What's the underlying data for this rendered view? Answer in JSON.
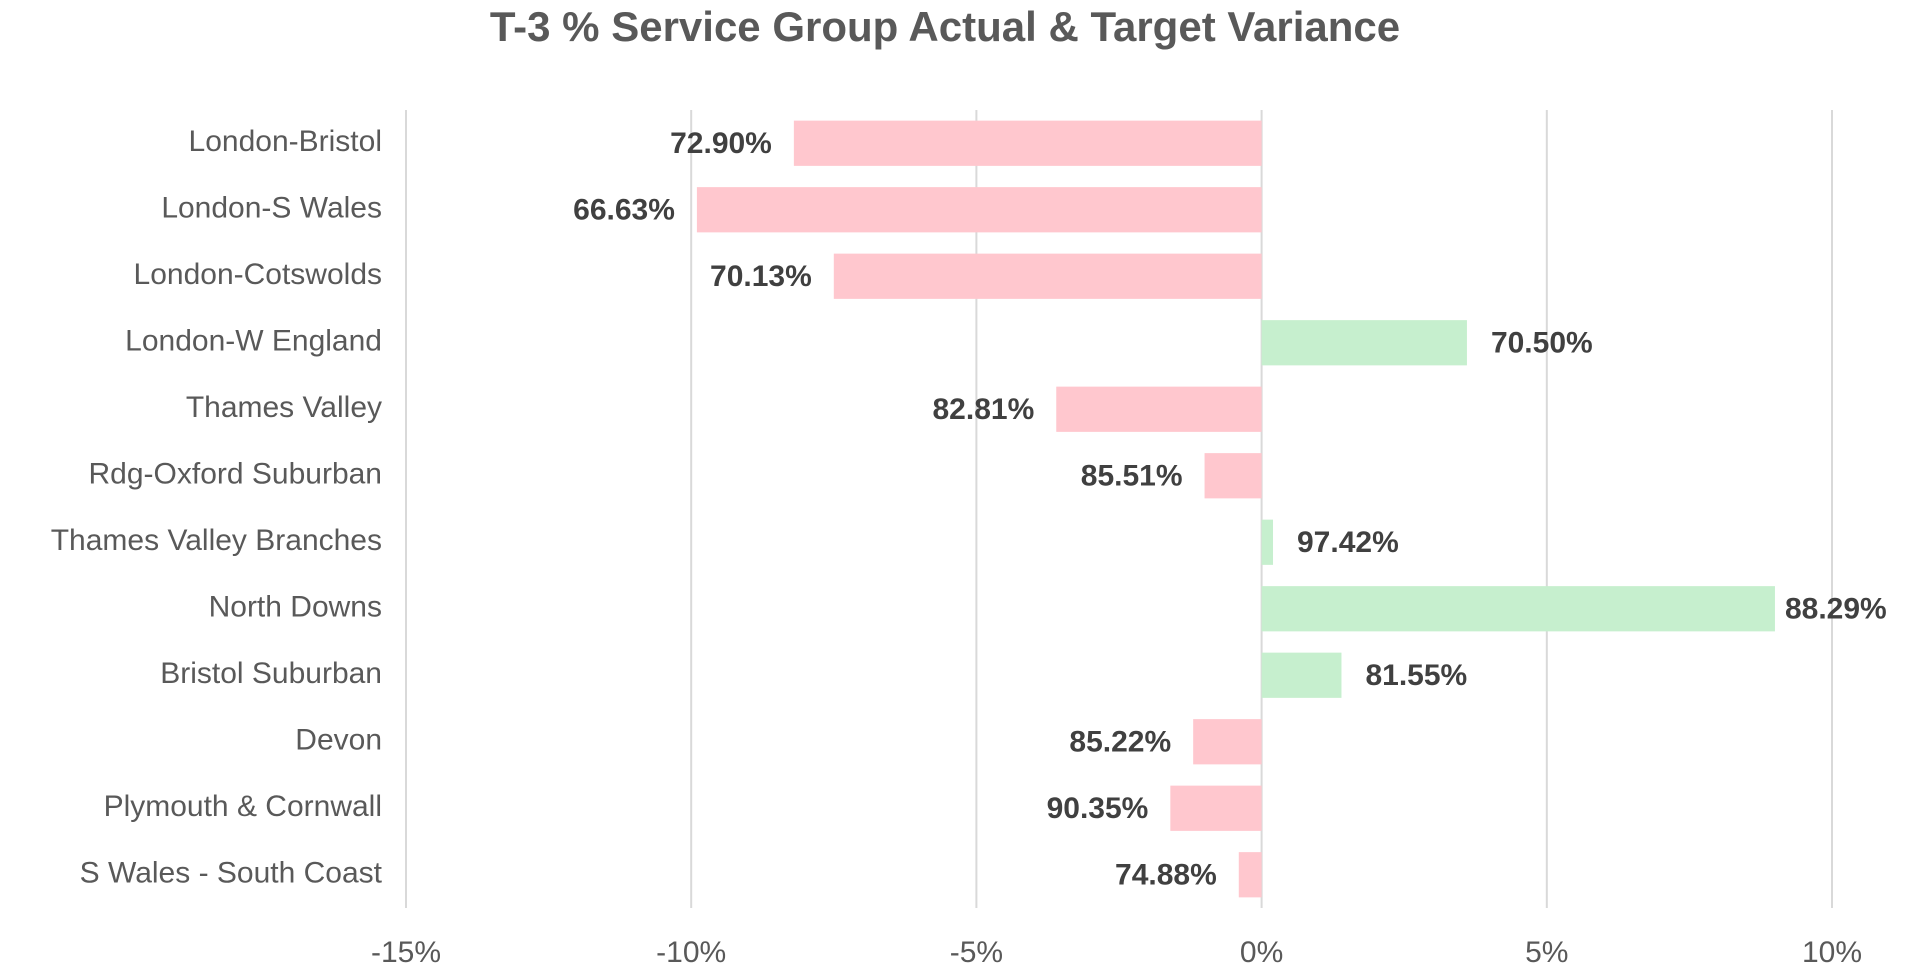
{
  "chart_data": {
    "type": "barh",
    "title": "T-3 % Service Group Actual & Target Variance",
    "categories": [
      "London-Bristol",
      "London-S Wales",
      "London-Cotswolds",
      "London-W England",
      "Thames Valley",
      "Rdg-Oxford Suburban",
      "Thames Valley Branches",
      "North Downs",
      "Bristol Suburban",
      "Devon",
      "Plymouth & Cornwall",
      "S Wales - South Coast"
    ],
    "values": [
      -8.2,
      -9.9,
      -7.5,
      3.6,
      -3.6,
      -1.0,
      0.2,
      9.0,
      1.4,
      -1.2,
      -1.6,
      -0.4
    ],
    "bar_labels": [
      "72.90%",
      "66.63%",
      "70.13%",
      "70.50%",
      "82.81%",
      "85.51%",
      "97.42%",
      "88.29%",
      "81.55%",
      "85.22%",
      "90.35%",
      "74.88%"
    ],
    "negative_color": "#ffc7ce",
    "positive_color": "#c6efce",
    "xlim": [
      -15,
      10
    ],
    "xticks": [
      {
        "value": -15,
        "label": "-15%"
      },
      {
        "value": -10,
        "label": "-10%"
      },
      {
        "value": -5,
        "label": "-5%"
      },
      {
        "value": 0,
        "label": "0%"
      },
      {
        "value": 5,
        "label": "5%"
      },
      {
        "value": 10,
        "label": "10%"
      }
    ],
    "grid": true
  }
}
